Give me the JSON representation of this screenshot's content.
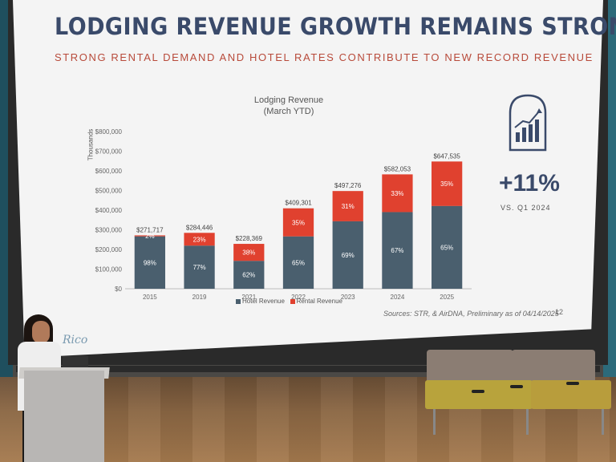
{
  "slide": {
    "title": "LODGING REVENUE GROWTH REMAINS STRONG",
    "subtitle": "STRONG RENTAL DEMAND AND HOTEL RATES CONTRIBUTE TO NEW RECORD REVENUE",
    "stat_value": "+11%",
    "stat_label": "VS. Q1 2024",
    "source": "Sources: STR, & AirDNA, Preliminary as of 04/14/2025",
    "page_number": "12",
    "logo_text": "Rico",
    "icon": "growth-chart-icon",
    "title_color": "#3a4a6a",
    "subtitle_color": "#b84a3a"
  },
  "chart_data": {
    "type": "bar",
    "title_line1": "Lodging Revenue",
    "title_line2": "(March YTD)",
    "ylabel": "Thousands",
    "ylim": [
      0,
      800000
    ],
    "y_ticks": [
      "$0",
      "$100,000",
      "$200,000",
      "$300,000",
      "$400,000",
      "$500,000",
      "$600,000",
      "$700,000",
      "$800,000"
    ],
    "categories": [
      "2015",
      "2019",
      "2021",
      "2022",
      "2023",
      "2024",
      "2025"
    ],
    "totals": [
      271717,
      284446,
      228369,
      409301,
      497276,
      582053,
      647535
    ],
    "total_labels": [
      "$271,717",
      "$284,446",
      "$228,369",
      "$409,301",
      "$497,276",
      "$582,053",
      "$647,535"
    ],
    "series": [
      {
        "name": "Hotel Revenue",
        "color": "#4a5f6e",
        "pct": [
          98,
          77,
          62,
          65,
          69,
          67,
          65
        ],
        "pct_labels": [
          "98%",
          "77%",
          "62%",
          "65%",
          "69%",
          "67%",
          "65%"
        ]
      },
      {
        "name": "Rental Revenue",
        "color": "#e0412f",
        "pct": [
          2,
          23,
          38,
          35,
          31,
          33,
          35
        ],
        "pct_labels": [
          "2%",
          "23%",
          "38%",
          "35%",
          "31%",
          "33%",
          "35%"
        ]
      }
    ],
    "legend_position": "bottom"
  }
}
